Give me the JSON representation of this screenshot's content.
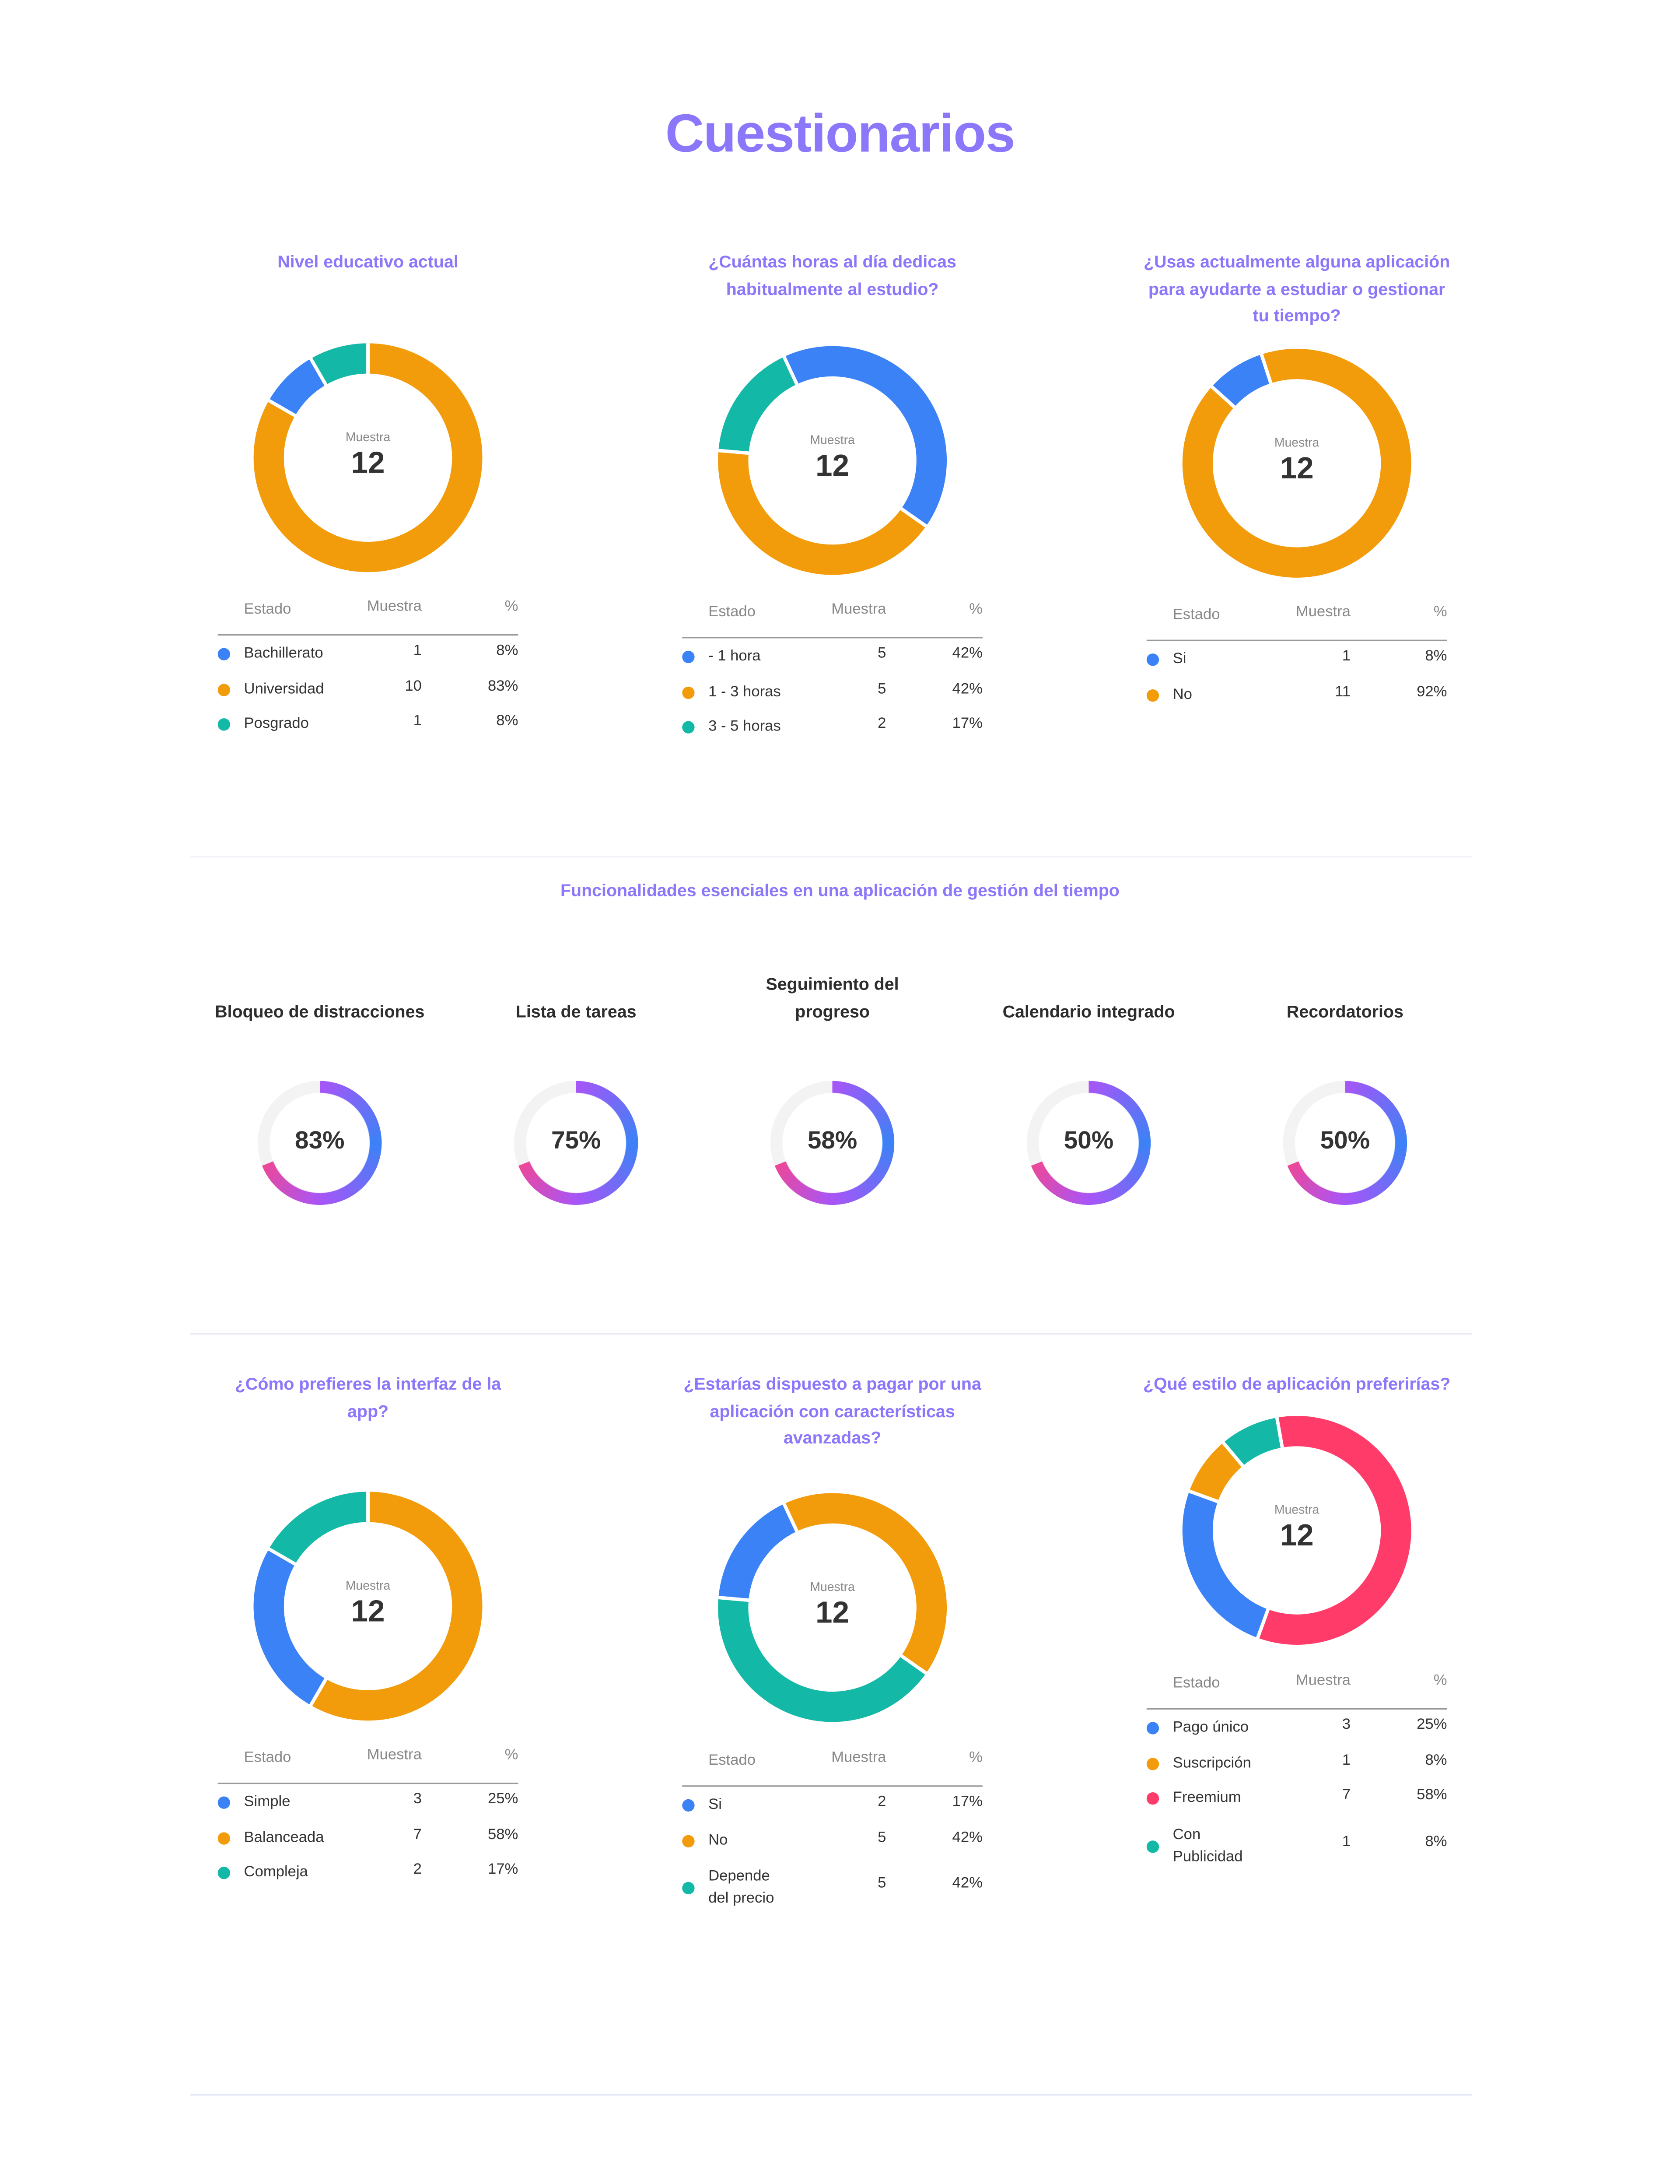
{
  "page_title": "Cuestionarios",
  "colors": {
    "accent": "#8b77f9",
    "blue": "#3b82f6",
    "orange": "#f39c0b",
    "teal": "#13b8a6",
    "pink": "#ff3b6a"
  },
  "table_headers": {
    "estado": "Estado",
    "muestra": "Muestra",
    "pct": "%"
  },
  "center_label": "Muestra",
  "questions": [
    {
      "title_lines": [
        "Nivel educativo actual"
      ],
      "total": "12",
      "rows": [
        {
          "label": [
            "Bachillerato"
          ],
          "value": 1,
          "pct": "8%",
          "color": "#3b82f6"
        },
        {
          "label": [
            "Universidad"
          ],
          "value": 10,
          "pct": "83%",
          "color": "#f39c0b"
        },
        {
          "label": [
            "Posgrado"
          ],
          "value": 1,
          "pct": "8%",
          "color": "#13b8a6"
        }
      ]
    },
    {
      "title_lines": [
        "¿Cuántas horas al día dedicas",
        "habitualmente al estudio?"
      ],
      "total": "12",
      "rows": [
        {
          "label": [
            "- 1 hora"
          ],
          "value": 5,
          "pct": "42%",
          "color": "#3b82f6"
        },
        {
          "label": [
            "1 - 3 horas"
          ],
          "value": 5,
          "pct": "42%",
          "color": "#f39c0b"
        },
        {
          "label": [
            "3 - 5 horas"
          ],
          "value": 2,
          "pct": "17%",
          "color": "#13b8a6"
        }
      ]
    },
    {
      "title_lines": [
        "¿Usas actualmente alguna aplicación",
        "para ayudarte a estudiar o gestionar",
        "tu tiempo?"
      ],
      "total": "12",
      "rows": [
        {
          "label": [
            "Si"
          ],
          "value": 1,
          "pct": "8%",
          "color": "#3b82f6"
        },
        {
          "label": [
            "No"
          ],
          "value": 11,
          "pct": "92%",
          "color": "#f39c0b"
        }
      ]
    },
    {
      "title_lines": [
        "¿Cómo prefieres la interfaz de la",
        "app?"
      ],
      "total": "12",
      "rows": [
        {
          "label": [
            "Simple"
          ],
          "value": 3,
          "pct": "25%",
          "color": "#3b82f6"
        },
        {
          "label": [
            "Balanceada"
          ],
          "value": 7,
          "pct": "58%",
          "color": "#f39c0b"
        },
        {
          "label": [
            "Compleja"
          ],
          "value": 2,
          "pct": "17%",
          "color": "#13b8a6"
        }
      ]
    },
    {
      "title_lines": [
        "¿Estarías dispuesto a pagar por una",
        "aplicación con características",
        "avanzadas?"
      ],
      "total": "12",
      "rows": [
        {
          "label": [
            "Si"
          ],
          "value": 2,
          "pct": "17%",
          "color": "#3b82f6"
        },
        {
          "label": [
            "No"
          ],
          "value": 5,
          "pct": "42%",
          "color": "#f39c0b"
        },
        {
          "label": [
            "Depende",
            "del precio"
          ],
          "value": 5,
          "pct": "42%",
          "color": "#13b8a6"
        }
      ]
    },
    {
      "title_lines": [
        "¿Qué estilo de aplicación preferirías?"
      ],
      "total": "12",
      "rows": [
        {
          "label": [
            "Pago único"
          ],
          "value": 3,
          "pct": "25%",
          "color": "#3b82f6"
        },
        {
          "label": [
            "Suscripción"
          ],
          "value": 1,
          "pct": "8%",
          "color": "#f39c0b"
        },
        {
          "label": [
            "Freemium"
          ],
          "value": 7,
          "pct": "58%",
          "color": "#ff3b6a"
        },
        {
          "label": [
            "Con",
            "Publicidad"
          ],
          "value": 1,
          "pct": "8%",
          "color": "#13b8a6"
        }
      ]
    }
  ],
  "features_section": {
    "title": "Funcionalidades esenciales en una aplicación de gestión del tiempo",
    "items": [
      {
        "label_lines": [
          "Bloqueo de distracciones"
        ],
        "value": "83%"
      },
      {
        "label_lines": [
          "Lista de tareas"
        ],
        "value": "75%"
      },
      {
        "label_lines": [
          "Seguimiento del",
          "progreso"
        ],
        "value": "58%"
      },
      {
        "label_lines": [
          "Calendario integrado"
        ],
        "value": "50%"
      },
      {
        "label_lines": [
          "Recordatorios"
        ],
        "value": "50%"
      }
    ],
    "gauge_gradient": [
      "#a855f7",
      "#3b82f6",
      "#ec4899"
    ],
    "gauge_track": "#f3f3f3"
  }
}
